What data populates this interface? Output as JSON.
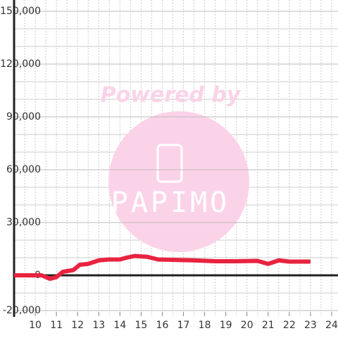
{
  "chart_data": {
    "type": "line",
    "watermark": {
      "top": "Powered by",
      "brand": "PAPIMO"
    },
    "x": [
      9,
      10,
      10.3,
      10.7,
      11,
      11.3,
      11.8,
      12.1,
      12.5,
      13,
      13.5,
      14,
      14.3,
      14.7,
      15.3,
      15.8,
      16.5,
      17.5,
      18.5,
      19.5,
      20.5,
      21,
      21.5,
      22,
      23
    ],
    "series": [
      {
        "color": "#e8233f",
        "values": [
          0,
          0,
          0,
          -2000,
          -1000,
          2000,
          3000,
          6000,
          6500,
          8500,
          9000,
          9000,
          10000,
          11000,
          10500,
          9000,
          8800,
          8500,
          8000,
          8000,
          8200,
          6500,
          8500,
          7800,
          7800
        ]
      }
    ],
    "xlim": [
      9,
      24.3
    ],
    "xticks": [
      10,
      11,
      12,
      13,
      14,
      15,
      16,
      17,
      18,
      19,
      20,
      21,
      22,
      23,
      24
    ],
    "ylim": [
      -20000,
      150000
    ],
    "yticks": [
      {
        "value": -20000,
        "label": "-20,000"
      },
      0,
      {
        "value": 30000,
        "label": "30,000"
      },
      {
        "value": 60000,
        "label": "60,000"
      },
      {
        "value": 90000,
        "label": "90,000"
      },
      {
        "value": 120000,
        "label": "120,000"
      },
      {
        "value": 150000,
        "label": "150,000"
      }
    ],
    "minor_ygrid": 10000,
    "minor_xgrid": 0.5,
    "grid": true
  }
}
